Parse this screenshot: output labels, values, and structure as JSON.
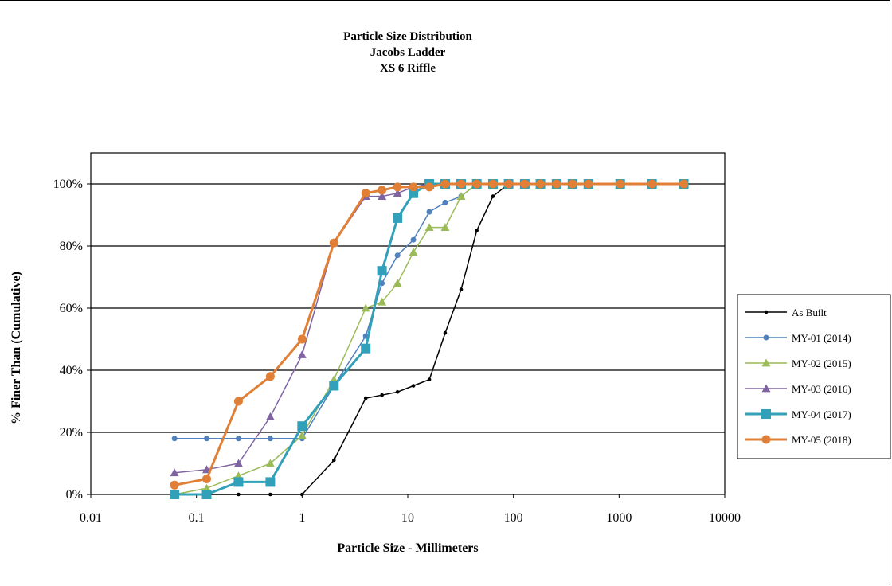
{
  "chart_data": {
    "type": "line",
    "title_lines": [
      "Particle Size Distribution",
      "Jacobs Ladder",
      "XS 6 Riffle"
    ],
    "xlabel": "Particle Size - Millimeters",
    "ylabel": "% Finer Than (Cumulative)",
    "x_scale": "log",
    "xlim": [
      0.01,
      10000
    ],
    "ylim": [
      0,
      1.1
    ],
    "x_ticks": [
      0.01,
      0.1,
      1,
      10,
      100,
      1000,
      10000
    ],
    "x_tick_labels": [
      "0.01",
      "0.1",
      "1",
      "10",
      "100",
      "1000",
      "10000"
    ],
    "y_ticks": [
      0,
      0.2,
      0.4,
      0.6,
      0.8,
      1.0
    ],
    "y_tick_labels": [
      "0%",
      "20%",
      "40%",
      "60%",
      "80%",
      "100%"
    ],
    "grid": "horizontal major",
    "legend_position": "right",
    "series": [
      {
        "name": "As Built",
        "color": "#000000",
        "marker": "dot",
        "x": [
          0.062,
          0.125,
          0.25,
          0.5,
          1,
          2,
          4,
          5.7,
          8,
          11.3,
          16,
          22.6,
          32,
          45,
          64,
          90,
          128,
          180,
          256,
          362,
          512,
          1024,
          2048,
          4096
        ],
        "y": [
          0,
          0,
          0,
          0,
          0,
          0.11,
          0.31,
          0.32,
          0.33,
          0.35,
          0.37,
          0.52,
          0.66,
          0.85,
          0.96,
          1,
          1,
          1,
          1,
          1,
          1,
          1,
          1,
          1
        ]
      },
      {
        "name": "MY-01 (2014)",
        "color": "#4f81bd",
        "marker": "circle",
        "x": [
          0.062,
          0.125,
          0.25,
          0.5,
          1,
          2,
          4,
          5.7,
          8,
          11.3,
          16,
          22.6,
          32,
          45,
          64,
          90,
          128,
          180,
          256,
          362,
          512,
          1024,
          2048,
          4096
        ],
        "y": [
          0.18,
          0.18,
          0.18,
          0.18,
          0.18,
          0.35,
          0.51,
          0.68,
          0.77,
          0.82,
          0.91,
          0.94,
          0.96,
          1,
          1,
          1,
          1,
          1,
          1,
          1,
          1,
          1,
          1,
          1
        ]
      },
      {
        "name": "MY-02 (2015)",
        "color": "#9bbb59",
        "marker": "triangle",
        "x": [
          0.062,
          0.125,
          0.25,
          0.5,
          1,
          2,
          4,
          5.7,
          8,
          11.3,
          16,
          22.6,
          32,
          45,
          64,
          90,
          128,
          180,
          256,
          362,
          512,
          1024,
          2048,
          4096
        ],
        "y": [
          0,
          0.02,
          0.06,
          0.1,
          0.19,
          0.37,
          0.6,
          0.62,
          0.68,
          0.78,
          0.86,
          0.86,
          0.96,
          1,
          1,
          1,
          1,
          1,
          1,
          1,
          1,
          1,
          1,
          1
        ]
      },
      {
        "name": "MY-03 (2016)",
        "color": "#8064a2",
        "marker": "triangle",
        "x": [
          0.062,
          0.125,
          0.25,
          0.5,
          1,
          2,
          4,
          5.7,
          8,
          11.3,
          16,
          22.6,
          32,
          45,
          64,
          90,
          128,
          180,
          256,
          362,
          512,
          1024,
          2048,
          4096
        ],
        "y": [
          0.07,
          0.08,
          0.1,
          0.25,
          0.45,
          0.81,
          0.96,
          0.96,
          0.97,
          0.99,
          1,
          1,
          1,
          1,
          1,
          1,
          1,
          1,
          1,
          1,
          1,
          1,
          1,
          1
        ]
      },
      {
        "name": "MY-04 (2017)",
        "color": "#31a0b8",
        "marker": "square",
        "x": [
          0.062,
          0.125,
          0.25,
          0.5,
          1,
          2,
          4,
          5.7,
          8,
          11.3,
          16,
          22.6,
          32,
          45,
          64,
          90,
          128,
          180,
          256,
          362,
          512,
          1024,
          2048,
          4096
        ],
        "y": [
          0,
          0,
          0.04,
          0.04,
          0.22,
          0.35,
          0.47,
          0.72,
          0.89,
          0.97,
          1,
          1,
          1,
          1,
          1,
          1,
          1,
          1,
          1,
          1,
          1,
          1,
          1,
          1
        ]
      },
      {
        "name": "MY-05 (2018)",
        "color": "#e07f35",
        "marker": "circle",
        "x": [
          0.062,
          0.125,
          0.25,
          0.5,
          1,
          2,
          4,
          5.7,
          8,
          11.3,
          16,
          22.6,
          32,
          45,
          64,
          90,
          128,
          180,
          256,
          362,
          512,
          1024,
          2048,
          4096
        ],
        "y": [
          0.03,
          0.05,
          0.3,
          0.38,
          0.5,
          0.81,
          0.97,
          0.98,
          0.99,
          0.99,
          0.99,
          1,
          1,
          1,
          1,
          1,
          1,
          1,
          1,
          1,
          1,
          1,
          1,
          1
        ]
      }
    ]
  }
}
